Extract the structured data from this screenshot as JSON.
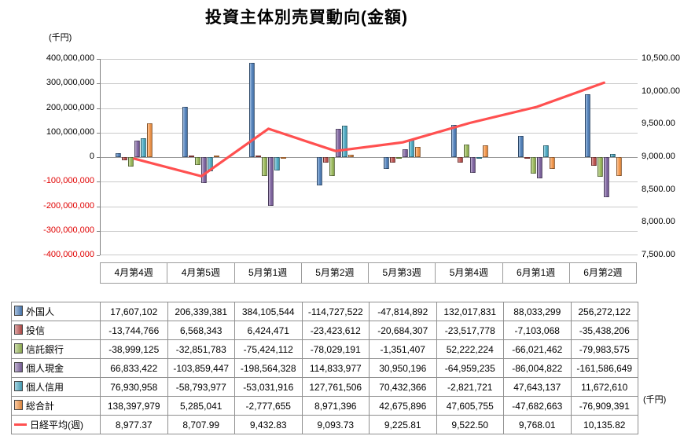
{
  "title": "投資主体別売買動向(金額)",
  "axes": {
    "left_unit": "(千円)",
    "right_unit": "(千円)"
  },
  "chart_data": {
    "type": "bar",
    "title": "投資主体別売買動向(金額)",
    "categories": [
      "4月第4週",
      "4月第5週",
      "5月第1週",
      "5月第2週",
      "5月第3週",
      "5月第4週",
      "6月第1週",
      "6月第2週"
    ],
    "series": [
      {
        "name": "外国人",
        "color": "#4F81BD",
        "values": [
          17607102,
          206339381,
          384105544,
          -114727522,
          -47814892,
          132017831,
          88033299,
          256272122
        ]
      },
      {
        "name": "投信",
        "color": "#C0504D",
        "values": [
          -13744766,
          6568343,
          6424471,
          -23423612,
          -20684307,
          -23517778,
          -7103068,
          -35438206
        ]
      },
      {
        "name": "信託銀行",
        "color": "#9BBB59",
        "values": [
          -38999125,
          -32851783,
          -75424112,
          -78029191,
          -1351407,
          52222224,
          -66021462,
          -79983575
        ]
      },
      {
        "name": "個人現金",
        "color": "#8064A2",
        "values": [
          66833422,
          -103859447,
          -198564328,
          114833977,
          30950196,
          -64959235,
          -86004822,
          -161586649
        ]
      },
      {
        "name": "個人信用",
        "color": "#4BACC6",
        "values": [
          76930958,
          -58793977,
          -53031916,
          127761506,
          70432366,
          -2821721,
          47643137,
          11672610
        ]
      },
      {
        "name": "総合計",
        "color": "#F79646",
        "values": [
          138397979,
          5285041,
          -2777655,
          8971396,
          42675896,
          47605755,
          -47682663,
          -76909391
        ]
      }
    ],
    "line_series": {
      "name": "日経平均(週)",
      "color": "#FF5050",
      "values": [
        8977.37,
        8707.99,
        9432.83,
        9093.73,
        9225.81,
        9522.5,
        9768.01,
        10135.82
      ]
    },
    "left_axis": {
      "min": -400000000,
      "max": 400000000,
      "step": 100000000,
      "unit": "(千円)",
      "negative_label_color": "#E00000"
    },
    "right_axis": {
      "min": 7500,
      "max": 10500,
      "step": 500,
      "unit": "(千円)"
    },
    "grid": true,
    "legend_position": "table-left"
  }
}
